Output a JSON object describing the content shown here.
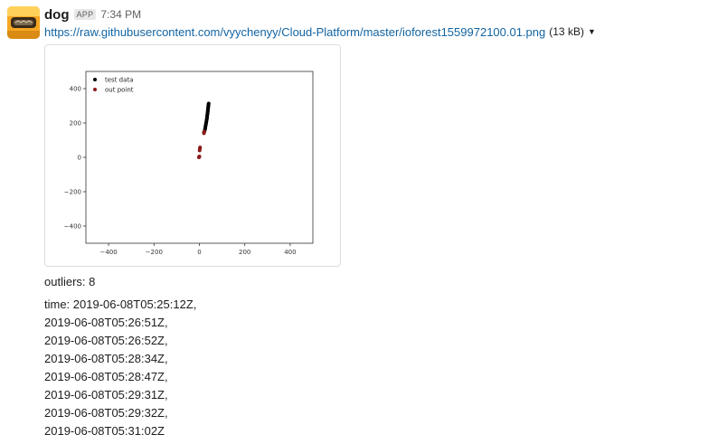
{
  "message": {
    "sender": "dog",
    "badge": "APP",
    "time": "7:34 PM",
    "link": "https://raw.githubusercontent.com/vyychenyy/Cloud-Platform/master/ioforest1559972100.01.png",
    "filesize": "(13 kB)",
    "outliers_line": "outliers: 8",
    "time_lines": [
      "time: 2019-06-08T05:25:12Z,",
      "2019-06-08T05:26:51Z,",
      "2019-06-08T05:26:52Z,",
      "2019-06-08T05:28:34Z,",
      "2019-06-08T05:28:47Z,",
      "2019-06-08T05:29:31Z,",
      "2019-06-08T05:29:32Z,",
      "2019-06-08T05:31:02Z"
    ]
  },
  "chart_data": {
    "type": "scatter",
    "title": "",
    "xlabel": "",
    "ylabel": "",
    "xlim": [
      -500,
      500
    ],
    "ylim": [
      -500,
      500
    ],
    "x_ticks": [
      -400,
      -200,
      0,
      200,
      400
    ],
    "y_ticks": [
      400,
      200,
      0,
      -200,
      -400
    ],
    "grid": false,
    "legend_position": "top-left",
    "series": [
      {
        "name": "test data",
        "color": "#000000",
        "points": [
          [
            22,
            150
          ],
          [
            24,
            158
          ],
          [
            25,
            165
          ],
          [
            26,
            172
          ],
          [
            27,
            180
          ],
          [
            28,
            188
          ],
          [
            29,
            195
          ],
          [
            30,
            202
          ],
          [
            31,
            210
          ],
          [
            32,
            218
          ],
          [
            33,
            225
          ],
          [
            34,
            232
          ],
          [
            34,
            240
          ],
          [
            35,
            247
          ],
          [
            36,
            254
          ],
          [
            36,
            260
          ],
          [
            37,
            266
          ],
          [
            37,
            272
          ],
          [
            38,
            278
          ],
          [
            38,
            284
          ],
          [
            39,
            290
          ],
          [
            39,
            296
          ],
          [
            40,
            302
          ],
          [
            40,
            308
          ],
          [
            41,
            313
          ],
          [
            20,
            145
          ]
        ]
      },
      {
        "name": "out point",
        "color": "#8b1a1a",
        "points": [
          [
            -2,
            0
          ],
          [
            -1,
            2
          ],
          [
            0,
            5
          ],
          [
            1,
            40
          ],
          [
            2,
            50
          ],
          [
            3,
            58
          ],
          [
            20,
            140
          ],
          [
            22,
            150
          ]
        ]
      }
    ]
  }
}
